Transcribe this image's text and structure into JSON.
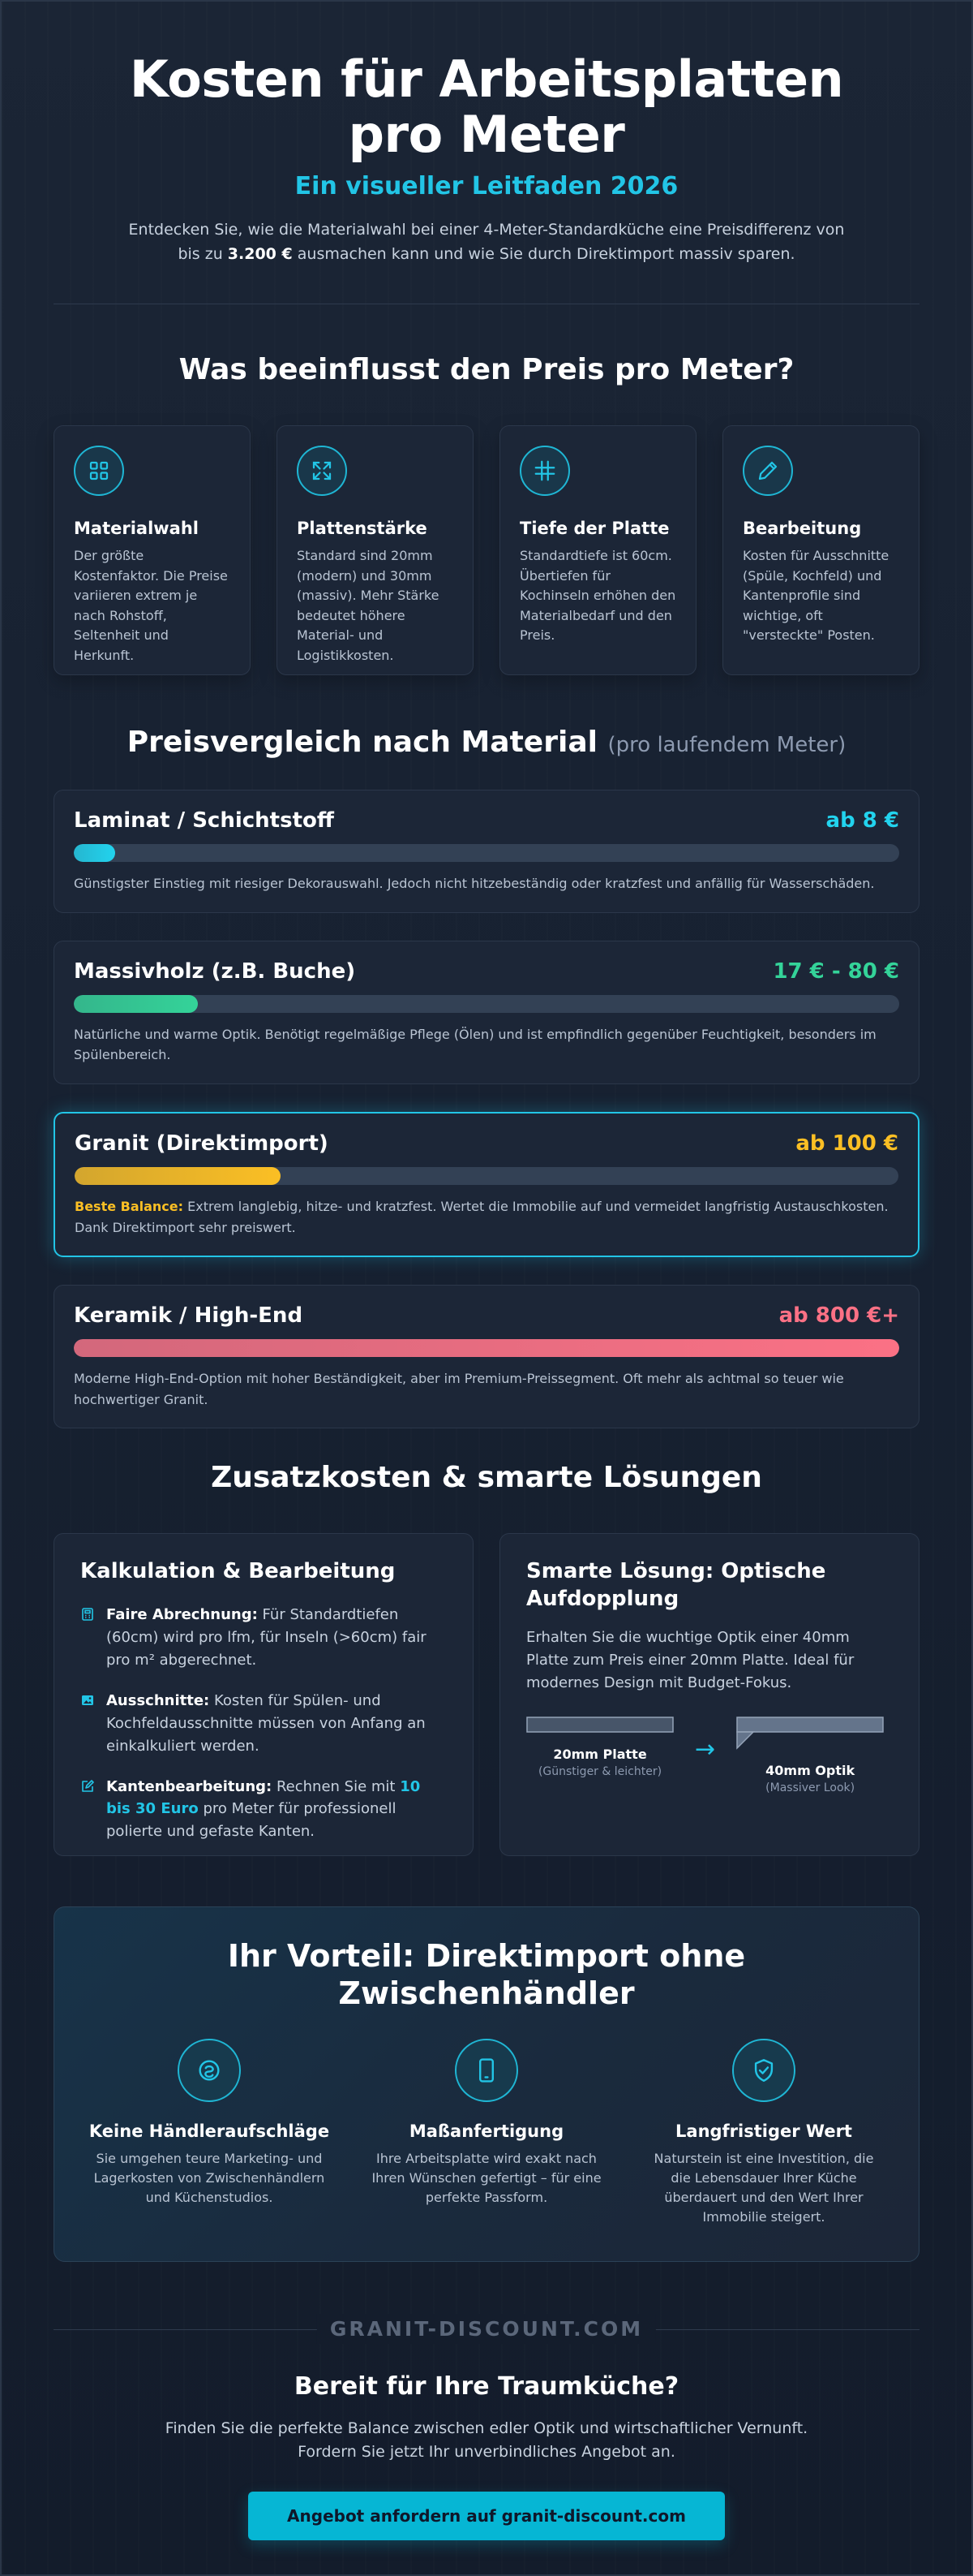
{
  "hero": {
    "title": "Kosten für Arbeitsplatten pro Meter",
    "subtitle": "Ein visueller Leitfaden 2026",
    "intro_before": "Entdecken Sie, wie die Materialwahl bei einer 4-Meter-Standardküche eine Preisdifferenz von bis zu ",
    "intro_bold": "3.200 €",
    "intro_after": " ausmachen kann und wie Sie durch Direktimport massiv sparen."
  },
  "factors": {
    "title": "Was beeinflusst den Preis pro Meter?",
    "items": [
      {
        "icon": "grid-icon",
        "title": "Materialwahl",
        "text": "Der größte Kostenfaktor. Die Preise variieren extrem je nach Rohstoff, Seltenheit und Herkunft."
      },
      {
        "icon": "expand-icon",
        "title": "Plattenstärke",
        "text": "Standard sind 20mm (modern) und 30mm (massiv). Mehr Stärke bedeutet höhere Material- und Logistikkosten."
      },
      {
        "icon": "hash-icon",
        "title": "Tiefe der Platte",
        "text": "Standardtiefe ist 60cm. Übertiefen für Kochinseln erhöhen den Materialbedarf und den Preis."
      },
      {
        "icon": "pencil-icon",
        "title": "Bearbeitung",
        "text": "Kosten für Ausschnitte (Spüle, Kochfeld) und Kantenprofile sind wichtige, oft \"versteckte\" Posten."
      }
    ]
  },
  "materials": {
    "title": "Preisvergleich nach Material",
    "title_sub": "(pro laufendem Meter)",
    "items": [
      {
        "name": "Laminat / Schichtstoff",
        "price": "ab 8 €",
        "color": "#22d3ee",
        "level": 0.05,
        "highlight": "",
        "text": "Günstigster Einstieg mit riesiger Dekorauswahl. Jedoch nicht hitzebeständig oder kratzfest und anfällig für Wasserschäden."
      },
      {
        "name": "Massivholz (z.B. Buche)",
        "price": "17 € - 80 €",
        "color": "#34d399",
        "level": 0.15,
        "highlight": "",
        "text": "Natürliche und warme Optik. Benötigt regelmäßige Pflege (Ölen) und ist empfindlich gegenüber Feuchtigkeit, besonders im Spülenbereich."
      },
      {
        "name": "Granit (Direktimport)",
        "price": "ab 100 €",
        "color": "#fbbf24",
        "level": 0.25,
        "highlight": "Beste Balance:",
        "text": " Extrem langlebig, hitze- und kratzfest. Wertet die Immobilie auf und vermeidet langfristig Austauschkosten. Dank Direktimport sehr preiswert."
      },
      {
        "name": "Keramik / High-End",
        "price": "ab 800 €+",
        "color": "#fb7185",
        "level": 1.0,
        "highlight": "",
        "text": "Moderne High-End-Option mit hoher Beständigkeit, aber im Premium-Preissegment. Oft mehr als achtmal so teuer wie hochwertiger Granit."
      }
    ]
  },
  "extras": {
    "title": "Zusatzkosten & smarte Lösungen",
    "calc": {
      "title": "Kalkulation & Bearbeitung",
      "items": [
        {
          "icon": "calculator-icon",
          "bold": "Faire Abrechnung:",
          "text_before": " Für Standardtiefen (60cm) wird pro lfm, für Inseln (>60cm) fair pro m² abgerechnet.",
          "accent": "",
          "text_after": ""
        },
        {
          "icon": "image-icon",
          "bold": "Ausschnitte:",
          "text_before": " Kosten für Spülen- und Kochfeldausschnitte müssen von Anfang an einkalkuliert werden.",
          "accent": "",
          "text_after": ""
        },
        {
          "icon": "edit-icon",
          "bold": "Kantenbearbeitung:",
          "text_before": " Rechnen Sie mit ",
          "accent": "10 bis 30 Euro",
          "text_after": " pro Meter für professionell polierte und gefaste Kanten."
        }
      ]
    },
    "smart": {
      "title": "Smarte Lösung: Optische Aufdopplung",
      "text": "Erhalten Sie die wuchtige Optik einer 40mm Platte zum Preis einer 20mm Platte. Ideal für modernes Design mit Budget-Fokus.",
      "slab_a_label": "20mm Platte",
      "slab_a_sub": "(Günstiger & leichter)",
      "arrow": "→",
      "slab_b_label": "40mm Optik",
      "slab_b_sub": "(Massiver Look)"
    }
  },
  "advantage": {
    "title": "Ihr Vorteil: Direktimport ohne Zwischenhändler",
    "items": [
      {
        "icon": "piggy-bank-icon",
        "title": "Keine Händleraufschläge",
        "text": "Sie umgehen teure Marketing- und Lagerkosten von Zwischenhändlern und Küchenstudios."
      },
      {
        "icon": "smartphone-icon",
        "title": "Maßanfertigung",
        "text": "Ihre Arbeitsplatte wird exakt nach Ihren Wünschen gefertigt – für eine perfekte Passform."
      },
      {
        "icon": "shield-check-icon",
        "title": "Langfristiger Wert",
        "text": "Naturstein ist eine Investition, die die Lebensdauer Ihrer Küche überdauert und den Wert Ihrer Immobilie steigert."
      }
    ]
  },
  "footer": {
    "brand": "GRANIT-DISCOUNT.COM",
    "cta_title": "Bereit für Ihre Traumküche?",
    "cta_text": "Finden Sie die perfekte Balance zwischen edler Optik und wirtschaftlicher Vernunft. Fordern Sie jetzt Ihr unverbindliches Angebot an.",
    "cta_button": "Angebot anfordern auf granit-discount.com"
  },
  "colors": {
    "accent": "#22c5e6",
    "gold": "#fbbf24",
    "background": "#172131"
  }
}
